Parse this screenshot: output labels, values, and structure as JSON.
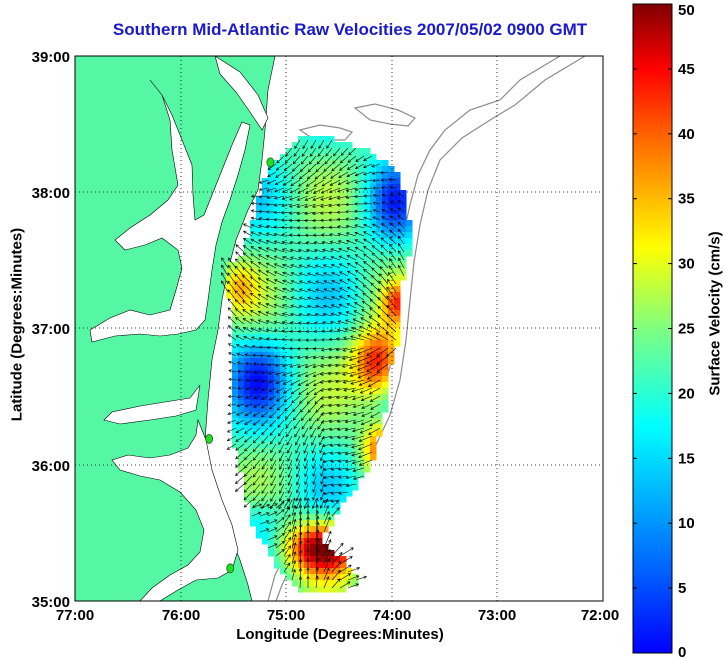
{
  "title": "Southern Mid-Atlantic Raw Velocities 2007/05/02 0900 GMT",
  "axes": {
    "x_label": "Longitude (Degrees:Minutes)",
    "y_label": "Latitude (Degrees:Minutes)",
    "x_ticks": [
      "77:00",
      "76:00",
      "75:00",
      "74:00",
      "73:00",
      "72:00"
    ],
    "y_ticks": [
      "39:00",
      "38:00",
      "37:00",
      "36:00",
      "35:00"
    ],
    "x_range": [
      -77,
      -72
    ],
    "y_range": [
      35,
      39
    ],
    "grid": "dotted"
  },
  "colorbar": {
    "label": "Surface Velocity (cm/s)",
    "ticks": [
      "50",
      "45",
      "40",
      "35",
      "30",
      "25",
      "20",
      "15",
      "10",
      "5",
      "0"
    ],
    "range": [
      0,
      50
    ],
    "colormap": "jet"
  },
  "colors": {
    "land": "#55f7a4",
    "water": "#ffffff",
    "bathymetry": "#8c8c8c",
    "title": "#1a1acc",
    "station_marker": "#22dd22"
  },
  "stations": [
    {
      "lon": -75.15,
      "lat": 38.22
    },
    {
      "lon": -75.73,
      "lat": 36.19
    },
    {
      "lon": -75.53,
      "lat": 35.24
    }
  ]
}
